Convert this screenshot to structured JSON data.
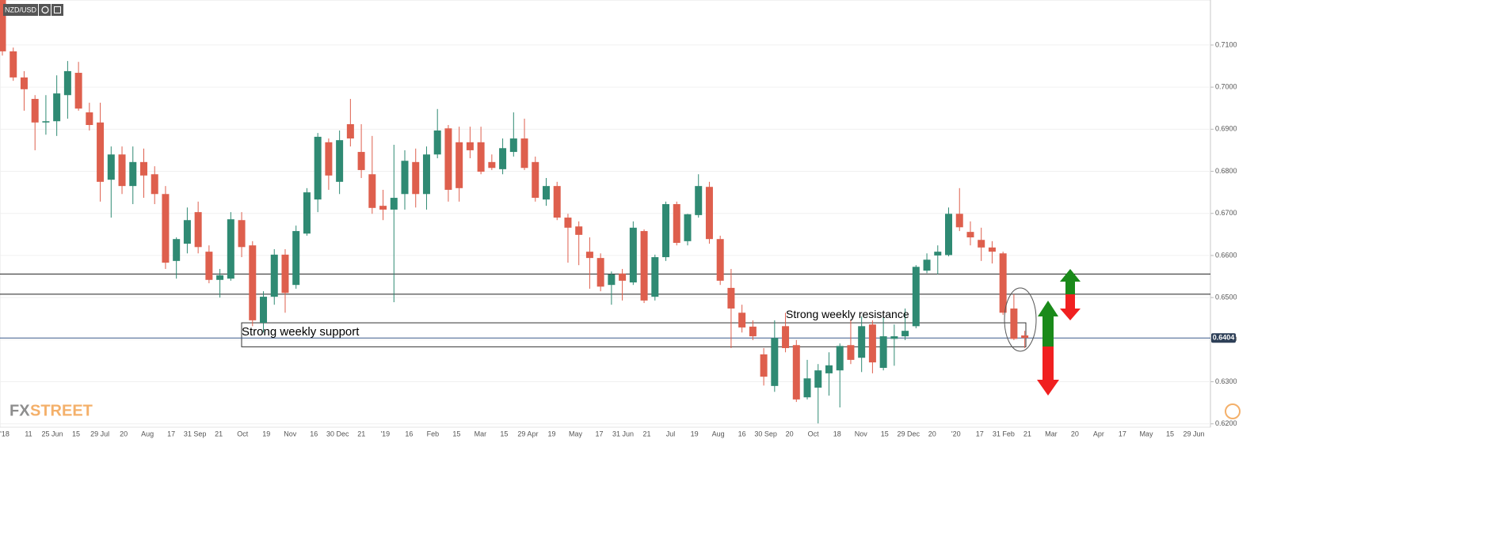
{
  "chart_data": {
    "type": "candlestick",
    "symbol": "NZD/USD",
    "logo": {
      "part1": "FX",
      "part2": "STREET"
    },
    "up_color": "#2f8a73",
    "down_color": "#de5f4d",
    "ylim": [
      0.6192,
      0.7207
    ],
    "yticks": [
      {
        "value": 0.71,
        "label": "0.7100"
      },
      {
        "value": 0.7,
        "label": "0.7000"
      },
      {
        "value": 0.69,
        "label": "0.6900"
      },
      {
        "value": 0.68,
        "label": "0.6800"
      },
      {
        "value": 0.67,
        "label": "0.6700"
      },
      {
        "value": 0.66,
        "label": "0.6600"
      },
      {
        "value": 0.65,
        "label": "0.6500"
      },
      {
        "value": 0.64,
        "label": "0.6400"
      },
      {
        "value": 0.63,
        "label": "0.6300"
      },
      {
        "value": 0.62,
        "label": "0.6200"
      }
    ],
    "grid": true,
    "x_labels": [
      "'18",
      "11",
      "25 Jun",
      "15",
      "29 Jul",
      "20",
      "Aug",
      "17",
      "31 Sep",
      "21",
      "Oct",
      "19",
      "Nov",
      "16",
      "30 Dec",
      "21",
      "'19",
      "16",
      "Feb",
      "15",
      "Mar",
      "15",
      "29 Apr",
      "19",
      "May",
      "17",
      "31 Jun",
      "21",
      "Jul",
      "19",
      "Aug",
      "16",
      "30 Sep",
      "20",
      "Oct",
      "18",
      "Nov",
      "15",
      "29 Dec",
      "20",
      "'20",
      "17",
      "31 Feb",
      "21",
      "Mar",
      "20",
      "Apr",
      "17",
      "May",
      "15",
      "29 Jun"
    ],
    "candles": {
      "open": [
        0.7207,
        0.7085,
        0.7023,
        0.6972,
        0.6916,
        0.6919,
        0.6981,
        0.7034,
        0.694,
        0.6916,
        0.678,
        0.684,
        0.6765,
        0.6822,
        0.6793,
        0.6746,
        0.6587,
        0.6628,
        0.6703,
        0.6609,
        0.6542,
        0.6545,
        0.6684,
        0.6624,
        0.644,
        0.6502,
        0.6602,
        0.653,
        0.6652,
        0.6733,
        0.6869,
        0.6775,
        0.6912,
        0.6846,
        0.6793,
        0.6718,
        0.6709,
        0.6746,
        0.6822,
        0.6746,
        0.684,
        0.6902,
        0.6869,
        0.6869,
        0.6869,
        0.6822,
        0.6805,
        0.6846,
        0.6878,
        0.6822,
        0.6733,
        0.6765,
        0.669,
        0.6669,
        0.6609,
        0.6594,
        0.653,
        0.6557,
        0.6536,
        0.6658,
        0.6502,
        0.6596,
        0.6722,
        0.6634,
        0.6696,
        0.6763,
        0.6639,
        0.6523,
        0.6464,
        0.6431,
        0.6365,
        0.629,
        0.6432,
        0.6387,
        0.6263,
        0.6286,
        0.632,
        0.6327,
        0.6387,
        0.6357,
        0.6436,
        0.6333,
        0.6402,
        0.6408,
        0.6432,
        0.6564,
        0.66,
        0.6601,
        0.6699,
        0.6656,
        0.6637,
        0.6619,
        0.6605,
        0.6474,
        0.641
      ],
      "high": [
        0.7207,
        0.7094,
        0.7038,
        0.6981,
        0.6981,
        0.7028,
        0.7062,
        0.706,
        0.6963,
        0.6963,
        0.6859,
        0.6859,
        0.6859,
        0.6854,
        0.6812,
        0.6765,
        0.6643,
        0.6714,
        0.6728,
        0.6624,
        0.6568,
        0.6703,
        0.6703,
        0.6634,
        0.6515,
        0.6615,
        0.6615,
        0.6671,
        0.676,
        0.6891,
        0.6878,
        0.6897,
        0.6972,
        0.6912,
        0.6884,
        0.6756,
        0.6863,
        0.685,
        0.6854,
        0.6859,
        0.6948,
        0.691,
        0.6906,
        0.6906,
        0.6906,
        0.684,
        0.6878,
        0.694,
        0.6925,
        0.6835,
        0.6784,
        0.6775,
        0.6699,
        0.6681,
        0.6643,
        0.6605,
        0.6562,
        0.6568,
        0.6681,
        0.6662,
        0.6602,
        0.6728,
        0.6728,
        0.6699,
        0.6793,
        0.6775,
        0.6647,
        0.6568,
        0.6483,
        0.6446,
        0.638,
        0.6446,
        0.6464,
        0.6399,
        0.6352,
        0.6342,
        0.637,
        0.6391,
        0.6446,
        0.6455,
        0.6446,
        0.6455,
        0.6436,
        0.6474,
        0.6577,
        0.6605,
        0.6624,
        0.6714,
        0.676,
        0.6681,
        0.6666,
        0.6634,
        0.6609,
        0.6508,
        0.6421
      ],
      "low": [
        0.7075,
        0.7015,
        0.6944,
        0.685,
        0.6887,
        0.6884,
        0.6925,
        0.6944,
        0.6897,
        0.6728,
        0.669,
        0.6746,
        0.6722,
        0.6737,
        0.6722,
        0.6568,
        0.6545,
        0.6605,
        0.6605,
        0.6534,
        0.65,
        0.654,
        0.6596,
        0.6432,
        0.6417,
        0.6483,
        0.6464,
        0.6521,
        0.6647,
        0.6703,
        0.6756,
        0.6746,
        0.6859,
        0.6784,
        0.6699,
        0.6684,
        0.6489,
        0.6709,
        0.6714,
        0.6709,
        0.6831,
        0.6728,
        0.6728,
        0.6831,
        0.6793,
        0.6803,
        0.6793,
        0.6835,
        0.6803,
        0.6728,
        0.6718,
        0.6684,
        0.6583,
        0.6577,
        0.6521,
        0.6515,
        0.6483,
        0.6493,
        0.653,
        0.6487,
        0.6493,
        0.6587,
        0.6624,
        0.6624,
        0.669,
        0.6628,
        0.653,
        0.638,
        0.6417,
        0.6399,
        0.6291,
        0.6276,
        0.637,
        0.6252,
        0.6258,
        0.6201,
        0.6267,
        0.6239,
        0.6342,
        0.6323,
        0.632,
        0.6327,
        0.6338,
        0.6399,
        0.6427,
        0.6558,
        0.6555,
        0.6598,
        0.6658,
        0.6624,
        0.6587,
        0.6581,
        0.6459,
        0.6399,
        0.638
      ],
      "close": [
        0.7085,
        0.7023,
        0.6995,
        0.6916,
        0.6919,
        0.6985,
        0.7038,
        0.6949,
        0.691,
        0.6775,
        0.684,
        0.6765,
        0.6822,
        0.679,
        0.6746,
        0.6583,
        0.6639,
        0.6684,
        0.662,
        0.6542,
        0.6553,
        0.6686,
        0.662,
        0.6446,
        0.6502,
        0.6602,
        0.6511,
        0.6658,
        0.675,
        0.6882,
        0.679,
        0.6874,
        0.6878,
        0.6803,
        0.6713,
        0.6709,
        0.6737,
        0.6825,
        0.6746,
        0.684,
        0.6897,
        0.6756,
        0.676,
        0.685,
        0.6799,
        0.6808,
        0.6855,
        0.6878,
        0.6808,
        0.6737,
        0.6765,
        0.669,
        0.6666,
        0.6649,
        0.6594,
        0.6526,
        0.6555,
        0.654,
        0.6666,
        0.6493,
        0.6596,
        0.6722,
        0.663,
        0.6698,
        0.6765,
        0.6639,
        0.654,
        0.6474,
        0.6429,
        0.6408,
        0.6312,
        0.6404,
        0.638,
        0.6258,
        0.6308,
        0.6327,
        0.6339,
        0.6385,
        0.6352,
        0.6432,
        0.6346,
        0.6408,
        0.6408,
        0.6421,
        0.6573,
        0.659,
        0.6609,
        0.6699,
        0.6667,
        0.6643,
        0.6619,
        0.6609,
        0.6464,
        0.6402,
        0.6404
      ]
    },
    "levels": [
      0.6556,
      0.6508
    ],
    "zone": {
      "top": 0.644,
      "bottom": 0.6383,
      "support_label": "Strong weekly support",
      "resistance_label": "Strong weekly resistance"
    },
    "last_price": {
      "value": 0.6404,
      "label": "0.6404"
    }
  }
}
